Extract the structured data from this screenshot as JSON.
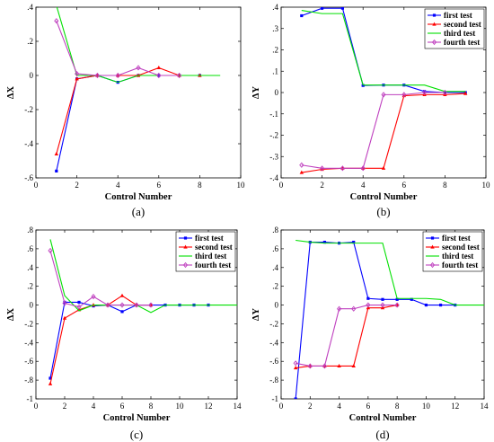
{
  "colors": {
    "first": "#0000ff",
    "second": "#ff0000",
    "third": "#00e000",
    "fourth": "#bf40bf"
  },
  "legend_position": "top-right",
  "chart_data": [
    {
      "type": "line",
      "caption": "(a)",
      "xlabel": "Control Number",
      "ylabel": "ΔX",
      "xlim": [
        0,
        10
      ],
      "ylim": [
        -0.6,
        0.4
      ],
      "xticks": [
        0,
        2,
        4,
        6,
        8,
        10
      ],
      "yticks": [
        -0.6,
        -0.4,
        -0.2,
        0,
        0.2,
        0.4
      ],
      "show_legend": false,
      "series": [
        {
          "key": "first",
          "marker": "square",
          "x": [
            1,
            2,
            3,
            4,
            5,
            6,
            7,
            8
          ],
          "y": [
            -0.56,
            -0.02,
            0,
            -0.04,
            0,
            0,
            0,
            0
          ]
        },
        {
          "key": "second",
          "marker": "triangle",
          "x": [
            1,
            2,
            3,
            4,
            5,
            6,
            7,
            8
          ],
          "y": [
            -0.46,
            -0.02,
            0,
            0,
            0,
            0.045,
            0,
            0
          ]
        },
        {
          "key": "third",
          "marker": "none",
          "x": [
            1,
            2,
            3,
            4,
            5,
            6,
            7,
            8,
            9
          ],
          "y": [
            0.41,
            0,
            0,
            -0.04,
            0,
            0,
            0,
            0,
            0
          ]
        },
        {
          "key": "fourth",
          "marker": "diamond",
          "x": [
            1,
            2,
            3,
            4,
            5,
            6,
            7
          ],
          "y": [
            0.32,
            0.01,
            0,
            0,
            0.045,
            0,
            0
          ]
        }
      ]
    },
    {
      "type": "line",
      "caption": "(b)",
      "xlabel": "Control Number",
      "ylabel": "ΔY",
      "xlim": [
        0,
        10
      ],
      "ylim": [
        -0.4,
        0.4
      ],
      "xticks": [
        0,
        2,
        4,
        6,
        8,
        10
      ],
      "yticks": [
        -0.4,
        -0.3,
        -0.2,
        -0.1,
        0,
        0.1,
        0.2,
        0.3,
        0.4
      ],
      "show_legend": true,
      "series": [
        {
          "key": "first",
          "name": "first test",
          "marker": "square",
          "x": [
            1,
            2,
            3,
            4,
            5,
            6,
            7,
            8,
            9
          ],
          "y": [
            0.36,
            0.395,
            0.395,
            0.033,
            0.035,
            0.035,
            0.005,
            0,
            0
          ]
        },
        {
          "key": "second",
          "name": "second test",
          "marker": "triangle",
          "x": [
            1,
            2,
            3,
            4,
            5,
            6,
            7,
            8,
            9
          ],
          "y": [
            -0.375,
            -0.36,
            -0.355,
            -0.355,
            -0.355,
            -0.015,
            -0.01,
            -0.01,
            -0.005
          ]
        },
        {
          "key": "third",
          "name": "third test",
          "marker": "none",
          "x": [
            1,
            2,
            3,
            4,
            5,
            6,
            7,
            8,
            9
          ],
          "y": [
            0.385,
            0.37,
            0.37,
            0.035,
            0.035,
            0.035,
            0.035,
            0.005,
            0.005
          ]
        },
        {
          "key": "fourth",
          "name": "fourth test",
          "marker": "diamond",
          "x": [
            1,
            2,
            3,
            4,
            5,
            6,
            7,
            8
          ],
          "y": [
            -0.34,
            -0.355,
            -0.355,
            -0.355,
            -0.01,
            -0.01,
            0,
            0
          ]
        }
      ]
    },
    {
      "type": "line",
      "caption": "(c)",
      "xlabel": "Control Number",
      "ylabel": "ΔX",
      "xlim": [
        0,
        14
      ],
      "ylim": [
        -1,
        0.8
      ],
      "xticks": [
        0,
        2,
        4,
        6,
        8,
        10,
        12,
        14
      ],
      "yticks": [
        -1,
        -0.8,
        -0.6,
        -0.4,
        -0.2,
        0,
        0.2,
        0.4,
        0.6,
        0.8
      ],
      "show_legend": true,
      "series": [
        {
          "key": "first",
          "name": "first test",
          "marker": "square",
          "x": [
            1,
            2,
            3,
            4,
            5,
            6,
            7,
            8,
            9,
            10,
            11,
            12
          ],
          "y": [
            -0.78,
            0.03,
            0.03,
            -0.01,
            0,
            -0.07,
            0,
            0,
            0,
            0,
            0,
            0
          ]
        },
        {
          "key": "second",
          "name": "second test",
          "marker": "triangle",
          "x": [
            1,
            2,
            3,
            4,
            5,
            6,
            7,
            8
          ],
          "y": [
            -0.84,
            -0.14,
            -0.05,
            0,
            0,
            0.1,
            0,
            0
          ]
        },
        {
          "key": "third",
          "name": "third test",
          "marker": "none",
          "x": [
            1,
            2,
            3,
            4,
            5,
            6,
            7,
            8,
            9,
            10,
            11,
            12,
            13,
            14
          ],
          "y": [
            0.7,
            0.1,
            -0.06,
            0,
            0,
            0,
            0,
            -0.08,
            0,
            0,
            0,
            0,
            0,
            0
          ]
        },
        {
          "key": "fourth",
          "name": "fourth test",
          "marker": "diamond",
          "x": [
            1,
            2,
            3,
            4,
            5,
            6,
            7,
            8
          ],
          "y": [
            0.58,
            0.02,
            -0.02,
            0.09,
            0,
            0,
            0,
            0
          ]
        }
      ]
    },
    {
      "type": "line",
      "caption": "(d)",
      "xlabel": "Control Number",
      "ylabel": "ΔY",
      "xlim": [
        0,
        14
      ],
      "ylim": [
        -1,
        0.8
      ],
      "xticks": [
        0,
        2,
        4,
        6,
        8,
        10,
        12,
        14
      ],
      "yticks": [
        -1,
        -0.8,
        -0.6,
        -0.4,
        -0.2,
        0,
        0.2,
        0.4,
        0.6,
        0.8
      ],
      "show_legend": true,
      "series": [
        {
          "key": "first",
          "name": "first test",
          "marker": "square",
          "x": [
            1,
            2,
            3,
            4,
            5,
            6,
            7,
            8,
            9,
            10,
            11,
            12
          ],
          "y": [
            -1,
            0.67,
            0.67,
            0.66,
            0.67,
            0.07,
            0.06,
            0.06,
            0.06,
            0,
            0,
            0
          ]
        },
        {
          "key": "second",
          "name": "second test",
          "marker": "triangle",
          "x": [
            1,
            2,
            3,
            4,
            5,
            6,
            7,
            8
          ],
          "y": [
            -0.67,
            -0.65,
            -0.65,
            -0.65,
            -0.65,
            -0.03,
            -0.03,
            0
          ]
        },
        {
          "key": "third",
          "name": "third test",
          "marker": "none",
          "x": [
            1,
            2,
            3,
            4,
            5,
            6,
            7,
            8,
            9,
            10,
            11,
            12,
            13,
            14
          ],
          "y": [
            0.69,
            0.67,
            0.66,
            0.66,
            0.66,
            0.66,
            0.66,
            0.07,
            0.07,
            0.07,
            0.06,
            0,
            0,
            0
          ]
        },
        {
          "key": "fourth",
          "name": "fourth test",
          "marker": "diamond",
          "x": [
            1,
            2,
            3,
            4,
            5,
            6,
            7,
            8
          ],
          "y": [
            -0.62,
            -0.65,
            -0.65,
            -0.04,
            -0.04,
            0,
            0,
            0
          ]
        }
      ]
    }
  ]
}
